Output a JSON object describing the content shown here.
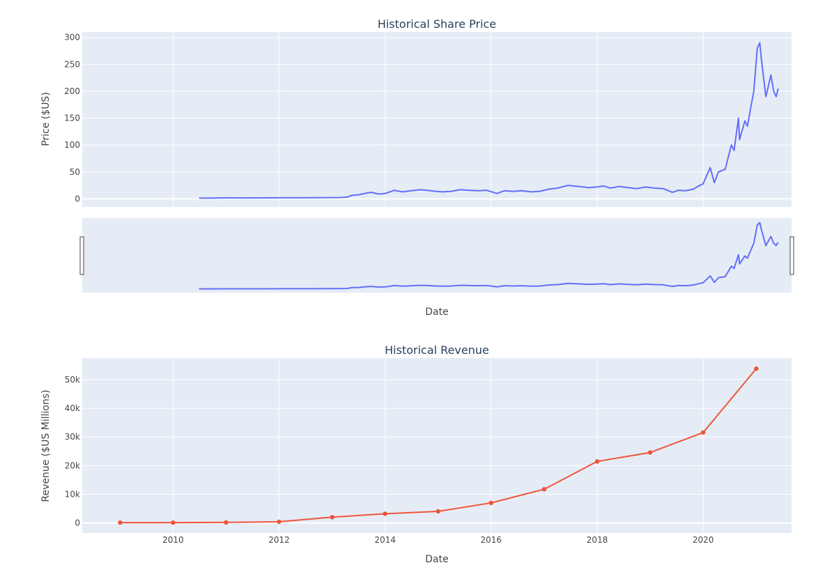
{
  "chart_data": [
    {
      "type": "line",
      "title": "Historical Share Price",
      "xlabel": "Date",
      "ylabel": "Price ($US)",
      "xlim": [
        "2008-04-15",
        "2021-09-01"
      ],
      "ylim": [
        -15,
        310
      ],
      "yticks": [
        0,
        50,
        100,
        150,
        200,
        250,
        300
      ],
      "xgrid": [
        "2010-01-01",
        "2012-01-01",
        "2014-01-01",
        "2016-01-01",
        "2018-01-01",
        "2020-01-01"
      ],
      "grid": true,
      "line_color": "#636efa",
      "range_slider": true,
      "series": [
        {
          "x": [
            "2010-06-29",
            "2010-09-01",
            "2011-01-01",
            "2011-06-01",
            "2012-01-01",
            "2012-06-01",
            "2013-01-01",
            "2013-03-01",
            "2013-04-15",
            "2013-05-15",
            "2013-07-01",
            "2013-09-01",
            "2013-10-01",
            "2013-11-15",
            "2014-01-01",
            "2014-02-15",
            "2014-03-01",
            "2014-05-01",
            "2014-07-01",
            "2014-09-01",
            "2014-10-15",
            "2014-12-15",
            "2015-02-01",
            "2015-04-01",
            "2015-06-01",
            "2015-08-01",
            "2015-10-01",
            "2015-12-01",
            "2016-02-10",
            "2016-04-01",
            "2016-06-01",
            "2016-08-01",
            "2016-10-01",
            "2016-12-01",
            "2017-02-01",
            "2017-04-01",
            "2017-06-15",
            "2017-09-01",
            "2017-11-01",
            "2018-01-01",
            "2018-02-15",
            "2018-04-01",
            "2018-06-01",
            "2018-08-01",
            "2018-10-01",
            "2018-12-01",
            "2019-02-01",
            "2019-04-01",
            "2019-06-03",
            "2019-07-15",
            "2019-09-01",
            "2019-10-25",
            "2019-12-01",
            "2020-01-01",
            "2020-02-19",
            "2020-03-18",
            "2020-04-15",
            "2020-06-01",
            "2020-07-13",
            "2020-08-01",
            "2020-08-31",
            "2020-09-08",
            "2020-10-15",
            "2020-11-01",
            "2020-11-24",
            "2020-12-15",
            "2021-01-08",
            "2021-01-25",
            "2021-02-05",
            "2021-03-08",
            "2021-04-12",
            "2021-05-01",
            "2021-05-18",
            "2021-06-01"
          ],
          "y": [
            1.5,
            1.3,
            1.8,
            1.7,
            1.9,
            2.0,
            2.3,
            2.5,
            3.3,
            6.5,
            7.5,
            11,
            12,
            9,
            10,
            14,
            16,
            13,
            15,
            17,
            16,
            14,
            13,
            14,
            17,
            16,
            15,
            16,
            10,
            15,
            14,
            15,
            13,
            14,
            18,
            20,
            25,
            23,
            21,
            22,
            24,
            20,
            23,
            21,
            19,
            22,
            20,
            19,
            12,
            16,
            15,
            18,
            24,
            28,
            58,
            30,
            50,
            55,
            100,
            90,
            150,
            110,
            145,
            135,
            170,
            200,
            280,
            290,
            260,
            190,
            230,
            200,
            190,
            205
          ]
        }
      ]
    },
    {
      "type": "line",
      "title": "Historical Revenue",
      "xlabel": "Date",
      "ylabel": "Revenue ($US Millions)",
      "xlim": [
        "2008-04-15",
        "2021-09-01"
      ],
      "ylim": [
        -3500,
        57500
      ],
      "yticks": [
        0,
        10000,
        20000,
        30000,
        40000,
        50000
      ],
      "ytick_labels": [
        "0",
        "10k",
        "20k",
        "30k",
        "40k",
        "50k"
      ],
      "xticks": [
        "2010-01-01",
        "2012-01-01",
        "2014-01-01",
        "2016-01-01",
        "2018-01-01",
        "2020-01-01"
      ],
      "xtick_labels": [
        "2010",
        "2012",
        "2014",
        "2016",
        "2018",
        "2020"
      ],
      "grid": true,
      "line_color": "#ef553b",
      "markers": true,
      "series": [
        {
          "x": [
            "2009-01-01",
            "2010-01-01",
            "2011-01-01",
            "2012-01-01",
            "2013-01-01",
            "2014-01-01",
            "2015-01-01",
            "2016-01-01",
            "2017-01-01",
            "2018-01-01",
            "2019-01-01",
            "2020-01-01",
            "2021-01-01"
          ],
          "y": [
            112,
            117,
            204,
            413,
            2013,
            3198,
            4046,
            7000,
            11759,
            21461,
            24578,
            31536,
            53823
          ]
        }
      ]
    }
  ]
}
